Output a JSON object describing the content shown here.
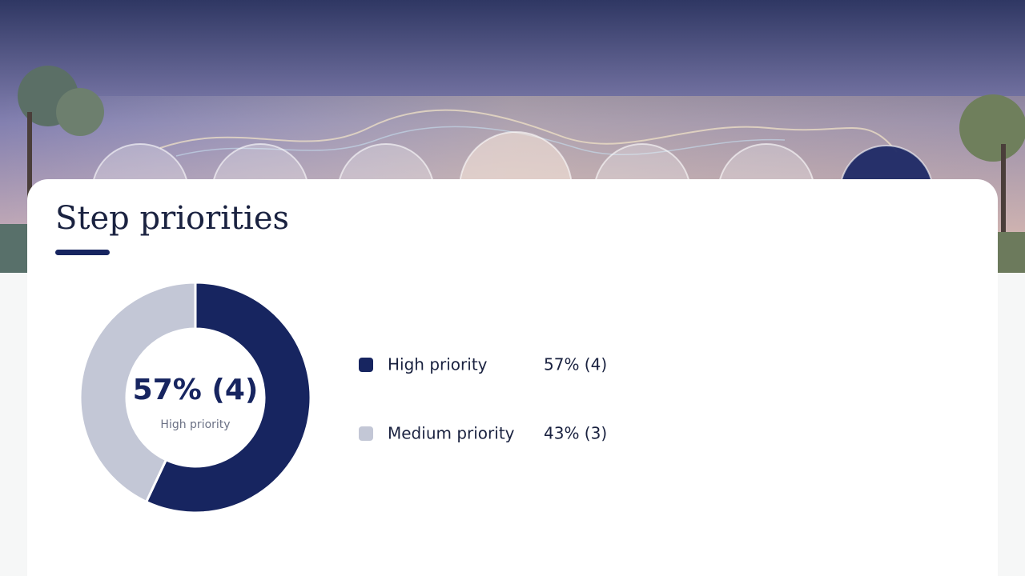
{
  "chart_data": {
    "type": "pie",
    "title": "Step priorities",
    "categories": [
      "High priority",
      "Medium priority"
    ],
    "values": [
      57,
      43
    ],
    "value_labels": [
      "57% (4)",
      "43% (3)"
    ],
    "colors": [
      "#172560",
      "#c3c7d6"
    ],
    "legend": "right"
  }
}
